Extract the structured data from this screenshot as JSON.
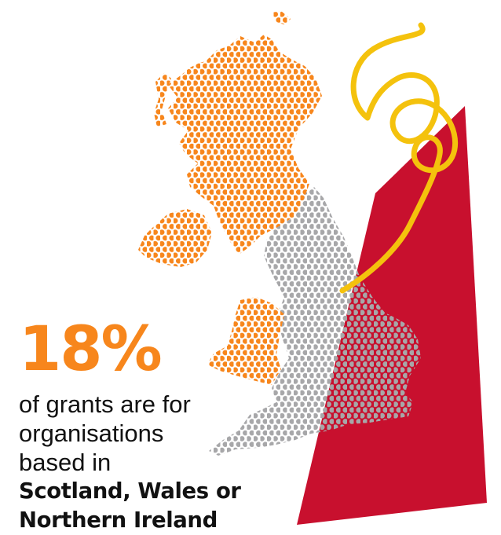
{
  "stat": {
    "value": "18%"
  },
  "caption": {
    "lines": [
      "of grants are for",
      "organisations",
      "based in"
    ],
    "bold_lines": [
      "Scotland, Wales or",
      "Northern Ireland"
    ]
  },
  "map": {
    "regions": [
      "scotland",
      "wales",
      "northern-ireland",
      "england"
    ],
    "highlighted_regions": [
      "scotland",
      "wales",
      "northern-ireland"
    ]
  },
  "colors": {
    "accent_orange": "#F7861C",
    "england_grey": "#A7A7A9",
    "england_on_red": "#9E2B3E",
    "red_shape": "#C8102E",
    "yellow_ribbon": "#F4C20D",
    "text": "#111111"
  }
}
